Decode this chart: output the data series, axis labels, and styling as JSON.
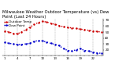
{
  "title_line1": "Milwaukee Weather Outdoor Temperature (vs) Dew",
  "title_line2": "Point (Last 24 Hours)",
  "title_fontsize": 3.8,
  "title_color": "#000000",
  "bg_color": "#ffffff",
  "plot_bg_color": "#ffffff",
  "temp_color": "#cc0000",
  "dew_color": "#0000cc",
  "grid_color": "#999999",
  "temp_values": [
    52,
    50,
    48,
    47,
    50,
    54,
    58,
    63,
    66,
    68,
    67,
    65,
    63,
    61,
    59,
    58,
    57,
    56,
    55,
    54,
    53,
    52,
    51,
    50
  ],
  "dew_values": [
    33,
    31,
    30,
    29,
    29,
    30,
    31,
    34,
    36,
    35,
    33,
    31,
    29,
    27,
    22,
    19,
    18,
    20,
    22,
    19,
    18,
    16,
    15,
    14
  ],
  "ylim": [
    10,
    72
  ],
  "ytick_values": [
    20,
    30,
    40,
    50,
    60,
    70
  ],
  "ytick_labels": [
    "20",
    "30",
    "40",
    "50",
    "60",
    "70"
  ],
  "ylabel_fontsize": 3.0,
  "xlabel_fontsize": 2.8,
  "xtick_labels": [
    "1",
    "",
    "",
    "2",
    "",
    "",
    "3",
    "",
    "",
    "4",
    "",
    "",
    "5",
    "",
    "",
    "6",
    "",
    "",
    "7",
    "",
    "",
    "8",
    "",
    "",
    "9",
    "",
    "",
    "10",
    "",
    "",
    "11",
    "",
    "",
    "12",
    "",
    "",
    "1",
    "",
    "",
    "2",
    "",
    "",
    "3",
    "",
    "",
    "4",
    "",
    "",
    "5",
    "",
    "",
    "6",
    "",
    "",
    "7",
    "",
    "",
    "8",
    "",
    "",
    "9",
    "",
    "",
    "10",
    "",
    "",
    "11",
    "",
    "",
    "12"
  ],
  "num_points": 24,
  "legend_temp": "Outdoor Temp",
  "legend_dew": "Dew Point",
  "legend_fontsize": 3.0,
  "line_width": 1.0,
  "marker_size": 1.5
}
